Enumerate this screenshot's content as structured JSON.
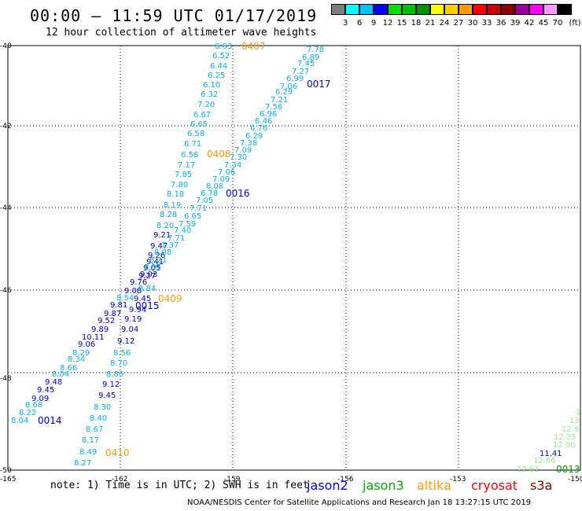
{
  "title": "00:00 — 11:59 UTC 01/17/2019",
  "subtitle": "12 hour collection of altimeter wave heights",
  "scale": {
    "unit": "(ft)",
    "colors": [
      "#7f7f7f",
      "#00ffff",
      "#00c0ff",
      "#0000ff",
      "#00e000",
      "#00c000",
      "#009000",
      "#ffff00",
      "#ffcc00",
      "#ff9900",
      "#ff0000",
      "#cc0000",
      "#880000",
      "#990099",
      "#ff00ff",
      "#ff99ff",
      "#000000"
    ],
    "labels": [
      "3",
      "6",
      "9",
      "12",
      "15",
      "18",
      "21",
      "24",
      "27",
      "30",
      "33",
      "36",
      "39",
      "42",
      "45",
      "70"
    ]
  },
  "axes": {
    "lon_labels": [
      "-165",
      "-162",
      "-159",
      "-156",
      "-153",
      "-150"
    ],
    "lat_labels": [
      "-40",
      "-42",
      "-44",
      "-46",
      "-48",
      "-50"
    ]
  },
  "track_colors": {
    "light": "#00b4e8",
    "dark": "#0000c8",
    "altika": "#ff9900",
    "green": "#33cc33",
    "lightgreen": "#99ee88",
    "darkgreen": "#009900"
  },
  "time_labels": [
    {
      "text": "0407",
      "color": "altika"
    },
    {
      "text": "0017",
      "color": "dark"
    },
    {
      "text": "0408",
      "color": "altika"
    },
    {
      "text": "0016",
      "color": "dark"
    },
    {
      "text": "0409",
      "color": "altika"
    },
    {
      "text": "0015",
      "color": "dark"
    },
    {
      "text": "0014",
      "color": "dark"
    },
    {
      "text": "0410",
      "color": "altika"
    },
    {
      "text": "0013",
      "color": "darkgreen"
    }
  ],
  "wave_values": [
    {
      "text": "6.63",
      "color": "light"
    },
    {
      "text": "6.52",
      "color": "light"
    },
    {
      "text": "6.44",
      "color": "light"
    },
    {
      "text": "6.25",
      "color": "light"
    },
    {
      "text": "6.10",
      "color": "light"
    },
    {
      "text": "6.32",
      "color": "light"
    },
    {
      "text": "7.20",
      "color": "light"
    },
    {
      "text": "6.67",
      "color": "light"
    },
    {
      "text": "6.65",
      "color": "light"
    },
    {
      "text": "6.58",
      "color": "light"
    },
    {
      "text": "6.71",
      "color": "light"
    },
    {
      "text": "6.58",
      "color": "light"
    },
    {
      "text": "7.17",
      "color": "light"
    },
    {
      "text": "7.85",
      "color": "light"
    },
    {
      "text": "7.80",
      "color": "light"
    },
    {
      "text": "8.18",
      "color": "light"
    },
    {
      "text": "8.19",
      "color": "light"
    },
    {
      "text": "8.28",
      "color": "light"
    },
    {
      "text": "8.20",
      "color": "light"
    },
    {
      "text": "9.21",
      "color": "dark"
    },
    {
      "text": "9.47",
      "color": "dark"
    },
    {
      "text": "9.26",
      "color": "dark"
    },
    {
      "text": "9.41",
      "color": "dark"
    },
    {
      "text": "9.05",
      "color": "dark"
    },
    {
      "text": "9.27",
      "color": "dark"
    },
    {
      "text": "9.76",
      "color": "dark"
    },
    {
      "text": "9.08",
      "color": "dark"
    },
    {
      "text": "8.54",
      "color": "light"
    },
    {
      "text": "9.81",
      "color": "dark"
    },
    {
      "text": "9.87",
      "color": "dark"
    },
    {
      "text": "9.52",
      "color": "dark"
    },
    {
      "text": "9.89",
      "color": "dark"
    },
    {
      "text": "10.11",
      "color": "dark"
    },
    {
      "text": "9.06",
      "color": "dark"
    },
    {
      "text": "8.29",
      "color": "light"
    },
    {
      "text": "8.34",
      "color": "light"
    },
    {
      "text": "8.66",
      "color": "light"
    },
    {
      "text": "8.04",
      "color": "light"
    },
    {
      "text": "9.48",
      "color": "dark"
    },
    {
      "text": "9.45",
      "color": "dark"
    },
    {
      "text": "9.09",
      "color": "dark"
    },
    {
      "text": "8.68",
      "color": "light"
    },
    {
      "text": "8.22",
      "color": "light"
    },
    {
      "text": "8.04",
      "color": "light"
    },
    {
      "text": "7.78",
      "color": "light"
    },
    {
      "text": "6.89",
      "color": "light"
    },
    {
      "text": "7.45",
      "color": "light"
    },
    {
      "text": "7.27",
      "color": "light"
    },
    {
      "text": "6.99",
      "color": "light"
    },
    {
      "text": "7.06",
      "color": "light"
    },
    {
      "text": "6.29",
      "color": "light"
    },
    {
      "text": "7.21",
      "color": "light"
    },
    {
      "text": "7.56",
      "color": "light"
    },
    {
      "text": "6.96",
      "color": "light"
    },
    {
      "text": "6.46",
      "color": "light"
    },
    {
      "text": "6.76",
      "color": "light"
    },
    {
      "text": "6.29",
      "color": "light"
    },
    {
      "text": "7.38",
      "color": "light"
    },
    {
      "text": "7.09",
      "color": "light"
    },
    {
      "text": "7.30",
      "color": "light"
    },
    {
      "text": "7.34",
      "color": "light"
    },
    {
      "text": "7.06",
      "color": "light"
    },
    {
      "text": "7.09",
      "color": "light"
    },
    {
      "text": "8.08",
      "color": "light"
    },
    {
      "text": "6.78",
      "color": "light"
    },
    {
      "text": "7.05",
      "color": "light"
    },
    {
      "text": "7.71",
      "color": "light"
    },
    {
      "text": "6.65",
      "color": "light"
    },
    {
      "text": "7.59",
      "color": "light"
    },
    {
      "text": "7.40",
      "color": "light"
    },
    {
      "text": "7.71",
      "color": "light"
    },
    {
      "text": "7.37",
      "color": "light"
    },
    {
      "text": "8.08",
      "color": "light"
    },
    {
      "text": "8.21",
      "color": "light"
    },
    {
      "text": "8.95",
      "color": "light"
    },
    {
      "text": "9.03",
      "color": "dark"
    },
    {
      "text": "8.84",
      "color": "light"
    },
    {
      "text": "9.45",
      "color": "dark"
    },
    {
      "text": "9.94",
      "color": "dark"
    },
    {
      "text": "9.19",
      "color": "dark"
    },
    {
      "text": "9.04",
      "color": "dark"
    },
    {
      "text": "9.12",
      "color": "dark"
    },
    {
      "text": "8.56",
      "color": "light"
    },
    {
      "text": "8.70",
      "color": "light"
    },
    {
      "text": "8.80",
      "color": "light"
    },
    {
      "text": "9.12",
      "color": "dark"
    },
    {
      "text": "9.45",
      "color": "dark"
    },
    {
      "text": "8.30",
      "color": "light"
    },
    {
      "text": "8.40",
      "color": "light"
    },
    {
      "text": "8.67",
      "color": "light"
    },
    {
      "text": "8.17",
      "color": "light"
    },
    {
      "text": "8.49",
      "color": "light"
    },
    {
      "text": "8.27",
      "color": "light"
    },
    {
      "text": "11.41",
      "color": "dark"
    },
    {
      "text": "12.66",
      "color": "lightgreen"
    },
    {
      "text": "12.61",
      "color": "lightgreen"
    },
    {
      "text": "12.90",
      "color": "lightgreen"
    },
    {
      "text": "12.35",
      "color": "lightgreen"
    },
    {
      "text": "12.9",
      "color": "lightgreen"
    },
    {
      "text": "13",
      "color": "lightgreen"
    },
    {
      "text": "1",
      "color": "lightgreen"
    }
  ],
  "note": "note: 1) Time is in UTC; 2) SWH is in feet",
  "legend": [
    {
      "text": "jason2",
      "color": "#0000ff"
    },
    {
      "text": "jason3",
      "color": "#00aa00"
    },
    {
      "text": "altika",
      "color": "#ff9900"
    },
    {
      "text": "cryosat",
      "color": "#ff0000"
    },
    {
      "text": "s3a",
      "color": "#880000"
    }
  ],
  "footer": "NOAA/NESDIS Center for Satellite Applications and Research    Jan 18 13:27:15 UTC 2019"
}
